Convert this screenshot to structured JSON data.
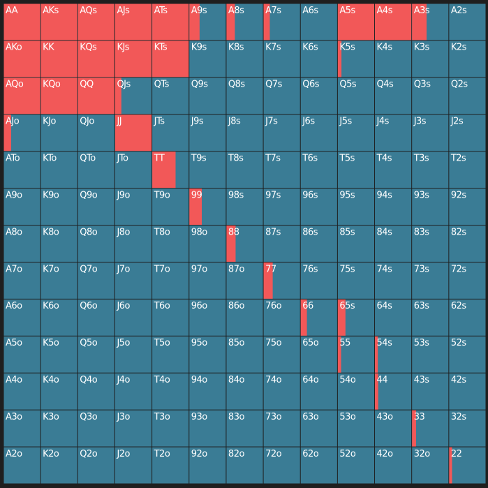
{
  "rows": [
    [
      {
        "label": "AA",
        "value": 100
      },
      {
        "label": "AKs",
        "value": 100
      },
      {
        "label": "AQs",
        "value": 100
      },
      {
        "label": "AJs",
        "value": 100
      },
      {
        "label": "ATs",
        "value": 100
      },
      {
        "label": "A9s",
        "value": 28
      },
      {
        "label": "A8s",
        "value": 23
      },
      {
        "label": "A7s",
        "value": 17
      },
      {
        "label": "A6s",
        "value": 0
      },
      {
        "label": "A5s",
        "value": 100
      },
      {
        "label": "A4s",
        "value": 100
      },
      {
        "label": "A3s",
        "value": 40
      },
      {
        "label": "A2s",
        "value": 0
      }
    ],
    [
      {
        "label": "AKo",
        "value": 100
      },
      {
        "label": "KK",
        "value": 100
      },
      {
        "label": "KQs",
        "value": 100
      },
      {
        "label": "KJs",
        "value": 100
      },
      {
        "label": "KTs",
        "value": 100
      },
      {
        "label": "K9s",
        "value": 0
      },
      {
        "label": "K8s",
        "value": 0
      },
      {
        "label": "K7s",
        "value": 0
      },
      {
        "label": "K6s",
        "value": 0
      },
      {
        "label": "K5s",
        "value": 10
      },
      {
        "label": "K4s",
        "value": 0
      },
      {
        "label": "K3s",
        "value": 0
      },
      {
        "label": "K2s",
        "value": 0
      }
    ],
    [
      {
        "label": "AQo",
        "value": 100
      },
      {
        "label": "KQo",
        "value": 100
      },
      {
        "label": "QQ",
        "value": 100
      },
      {
        "label": "QJs",
        "value": 17
      },
      {
        "label": "QTs",
        "value": 0
      },
      {
        "label": "Q9s",
        "value": 0
      },
      {
        "label": "Q8s",
        "value": 0
      },
      {
        "label": "Q7s",
        "value": 0
      },
      {
        "label": "Q6s",
        "value": 0
      },
      {
        "label": "Q5s",
        "value": 0
      },
      {
        "label": "Q4s",
        "value": 0
      },
      {
        "label": "Q3s",
        "value": 0
      },
      {
        "label": "Q2s",
        "value": 0
      }
    ],
    [
      {
        "label": "AJo",
        "value": 20
      },
      {
        "label": "KJo",
        "value": 0
      },
      {
        "label": "QJo",
        "value": 0
      },
      {
        "label": "JJ",
        "value": 100
      },
      {
        "label": "JTs",
        "value": 0
      },
      {
        "label": "J9s",
        "value": 0
      },
      {
        "label": "J8s",
        "value": 0
      },
      {
        "label": "J7s",
        "value": 0
      },
      {
        "label": "J6s",
        "value": 0
      },
      {
        "label": "J5s",
        "value": 0
      },
      {
        "label": "J4s",
        "value": 0
      },
      {
        "label": "J3s",
        "value": 0
      },
      {
        "label": "J2s",
        "value": 0
      }
    ],
    [
      {
        "label": "ATo",
        "value": 0
      },
      {
        "label": "KTo",
        "value": 0
      },
      {
        "label": "QTo",
        "value": 0
      },
      {
        "label": "JTo",
        "value": 0
      },
      {
        "label": "TT",
        "value": 64
      },
      {
        "label": "T9s",
        "value": 0
      },
      {
        "label": "T8s",
        "value": 0
      },
      {
        "label": "T7s",
        "value": 0
      },
      {
        "label": "T6s",
        "value": 0
      },
      {
        "label": "T5s",
        "value": 0
      },
      {
        "label": "T4s",
        "value": 0
      },
      {
        "label": "T3s",
        "value": 0
      },
      {
        "label": "T2s",
        "value": 0
      }
    ],
    [
      {
        "label": "A9o",
        "value": 0
      },
      {
        "label": "K9o",
        "value": 0
      },
      {
        "label": "Q9o",
        "value": 0
      },
      {
        "label": "J9o",
        "value": 0
      },
      {
        "label": "T9o",
        "value": 0
      },
      {
        "label": "99",
        "value": 34
      },
      {
        "label": "98s",
        "value": 0
      },
      {
        "label": "97s",
        "value": 0
      },
      {
        "label": "96s",
        "value": 0
      },
      {
        "label": "95s",
        "value": 0
      },
      {
        "label": "94s",
        "value": 0
      },
      {
        "label": "93s",
        "value": 0
      },
      {
        "label": "92s",
        "value": 0
      }
    ],
    [
      {
        "label": "A8o",
        "value": 0
      },
      {
        "label": "K8o",
        "value": 0
      },
      {
        "label": "Q8o",
        "value": 0
      },
      {
        "label": "J8o",
        "value": 0
      },
      {
        "label": "T8o",
        "value": 0
      },
      {
        "label": "98o",
        "value": 0
      },
      {
        "label": "88",
        "value": 25
      },
      {
        "label": "87s",
        "value": 0
      },
      {
        "label": "86s",
        "value": 0
      },
      {
        "label": "85s",
        "value": 0
      },
      {
        "label": "84s",
        "value": 0
      },
      {
        "label": "83s",
        "value": 0
      },
      {
        "label": "82s",
        "value": 0
      }
    ],
    [
      {
        "label": "A7o",
        "value": 0
      },
      {
        "label": "K7o",
        "value": 0
      },
      {
        "label": "Q7o",
        "value": 0
      },
      {
        "label": "J7o",
        "value": 0
      },
      {
        "label": "T7o",
        "value": 0
      },
      {
        "label": "97o",
        "value": 0
      },
      {
        "label": "87o",
        "value": 0
      },
      {
        "label": "77",
        "value": 25
      },
      {
        "label": "76s",
        "value": 0
      },
      {
        "label": "75s",
        "value": 0
      },
      {
        "label": "74s",
        "value": 0
      },
      {
        "label": "73s",
        "value": 0
      },
      {
        "label": "72s",
        "value": 0
      }
    ],
    [
      {
        "label": "A6o",
        "value": 0
      },
      {
        "label": "K6o",
        "value": 0
      },
      {
        "label": "Q6o",
        "value": 0
      },
      {
        "label": "J6o",
        "value": 0
      },
      {
        "label": "T6o",
        "value": 0
      },
      {
        "label": "96o",
        "value": 0
      },
      {
        "label": "86o",
        "value": 0
      },
      {
        "label": "76o",
        "value": 0
      },
      {
        "label": "66",
        "value": 17
      },
      {
        "label": "65s",
        "value": 21
      },
      {
        "label": "64s",
        "value": 0
      },
      {
        "label": "63s",
        "value": 0
      },
      {
        "label": "62s",
        "value": 0
      }
    ],
    [
      {
        "label": "A5o",
        "value": 0
      },
      {
        "label": "K5o",
        "value": 0
      },
      {
        "label": "Q5o",
        "value": 0
      },
      {
        "label": "J5o",
        "value": 0
      },
      {
        "label": "T5o",
        "value": 0
      },
      {
        "label": "95o",
        "value": 0
      },
      {
        "label": "85o",
        "value": 0
      },
      {
        "label": "75o",
        "value": 0
      },
      {
        "label": "65o",
        "value": 0
      },
      {
        "label": "55",
        "value": 9
      },
      {
        "label": "54s",
        "value": 8
      },
      {
        "label": "53s",
        "value": 0
      },
      {
        "label": "52s",
        "value": 0
      }
    ],
    [
      {
        "label": "A4o",
        "value": 0
      },
      {
        "label": "K4o",
        "value": 0
      },
      {
        "label": "Q4o",
        "value": 0
      },
      {
        "label": "J4o",
        "value": 0
      },
      {
        "label": "T4o",
        "value": 0
      },
      {
        "label": "94o",
        "value": 0
      },
      {
        "label": "84o",
        "value": 0
      },
      {
        "label": "74o",
        "value": 0
      },
      {
        "label": "64o",
        "value": 0
      },
      {
        "label": "54o",
        "value": 0
      },
      {
        "label": "44",
        "value": 9
      },
      {
        "label": "43s",
        "value": 0
      },
      {
        "label": "42s",
        "value": 0
      }
    ],
    [
      {
        "label": "A3o",
        "value": 0
      },
      {
        "label": "K3o",
        "value": 0
      },
      {
        "label": "Q3o",
        "value": 0
      },
      {
        "label": "J3o",
        "value": 0
      },
      {
        "label": "T3o",
        "value": 0
      },
      {
        "label": "93o",
        "value": 0
      },
      {
        "label": "83o",
        "value": 0
      },
      {
        "label": "73o",
        "value": 0
      },
      {
        "label": "63o",
        "value": 0
      },
      {
        "label": "53o",
        "value": 0
      },
      {
        "label": "43o",
        "value": 0
      },
      {
        "label": "33",
        "value": 11
      },
      {
        "label": "32s",
        "value": 0
      }
    ],
    [
      {
        "label": "A2o",
        "value": 0
      },
      {
        "label": "K2o",
        "value": 0
      },
      {
        "label": "Q2o",
        "value": 0
      },
      {
        "label": "J2o",
        "value": 0
      },
      {
        "label": "T2o",
        "value": 0
      },
      {
        "label": "92o",
        "value": 0
      },
      {
        "label": "82o",
        "value": 0
      },
      {
        "label": "72o",
        "value": 0
      },
      {
        "label": "62o",
        "value": 0
      },
      {
        "label": "52o",
        "value": 0
      },
      {
        "label": "42o",
        "value": 0
      },
      {
        "label": "32o",
        "value": 0
      },
      {
        "label": "22",
        "value": 8
      }
    ]
  ]
}
